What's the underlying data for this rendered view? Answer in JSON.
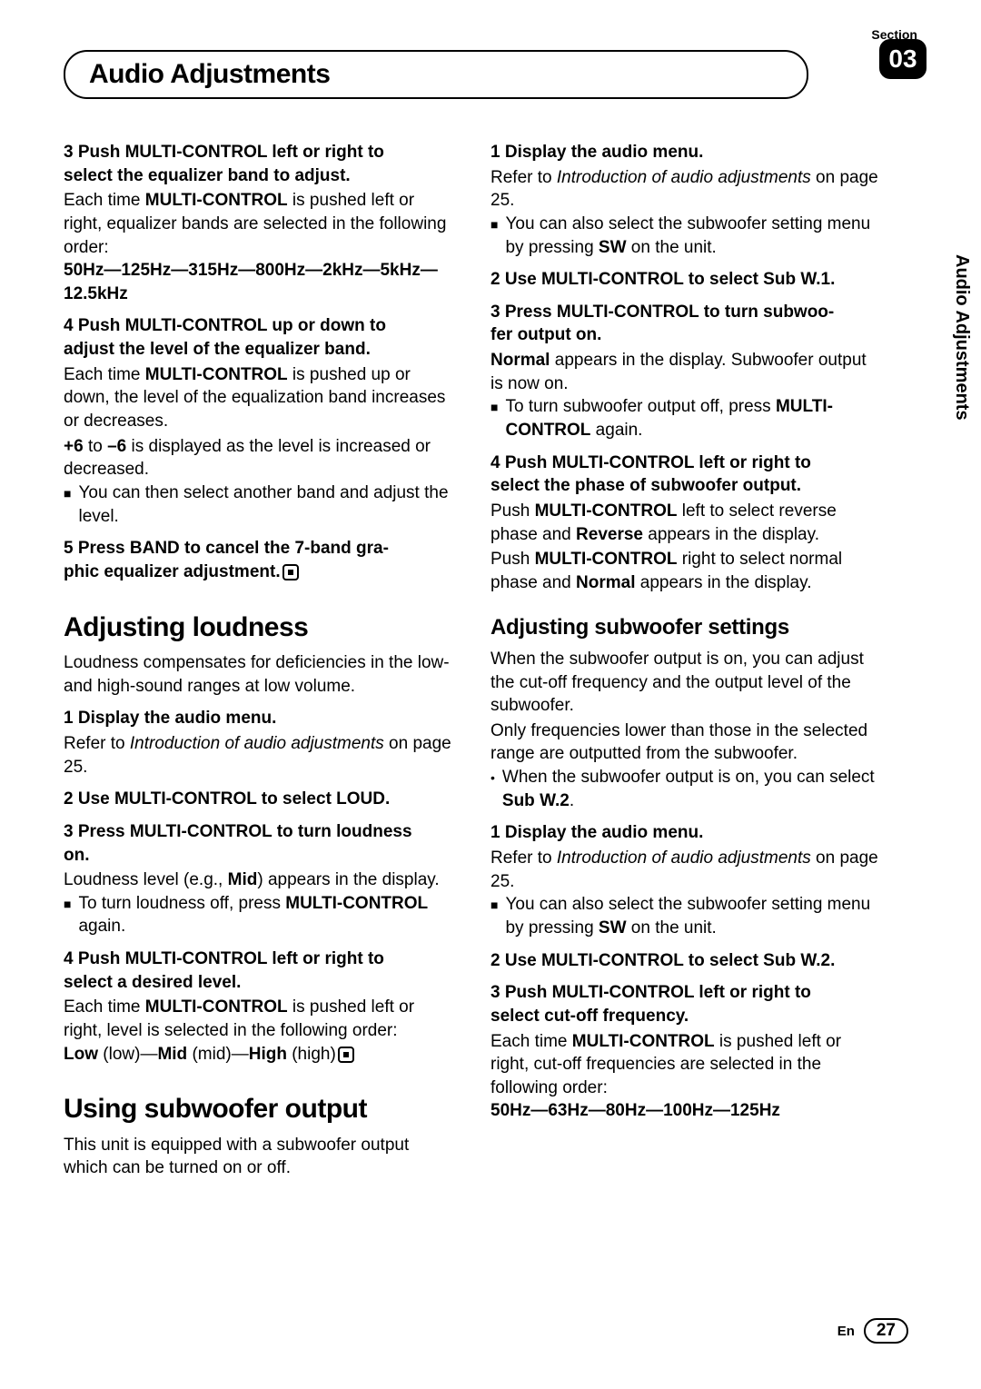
{
  "header": {
    "section_label": "Section",
    "title": "Audio Adjustments",
    "section_number": "03"
  },
  "side_tab": "Audio Adjustments",
  "left_col": {
    "step3_title_a": "3    Push MULTI-CONTROL left or right to",
    "step3_title_b": "select the equalizer band to adjust.",
    "step3_p1_a": "Each time ",
    "step3_p1_b": "MULTI-CONTROL",
    "step3_p1_c": " is pushed left or right, equalizer bands are selected in the following order:",
    "step3_seq": "50Hz—125Hz—315Hz—800Hz—2kHz—5kHz—12.5kHz",
    "step4_title_a": "4    Push MULTI-CONTROL up or down to",
    "step4_title_b": "adjust the level of the equalizer band.",
    "step4_p1_a": "Each time ",
    "step4_p1_b": "MULTI-CONTROL",
    "step4_p1_c": " is pushed up or down, the level of the equalization band increases or decreases.",
    "step4_p2_a": "+6",
    "step4_p2_b": " to ",
    "step4_p2_c": "–6",
    "step4_p2_d": " is displayed as the level is increased or decreased.",
    "step4_bullet": "You can then select another band and adjust the level.",
    "step5_title_a": "5    Press BAND to cancel the 7-band gra-",
    "step5_title_b": "phic equalizer adjustment.",
    "h2_loudness": "Adjusting loudness",
    "loud_intro": "Loudness compensates for deficiencies in the low- and high-sound ranges at low volume.",
    "loud_s1": "1    Display the audio menu.",
    "loud_s1_p_a": "Refer to ",
    "loud_s1_p_b": "Introduction of audio adjustments",
    "loud_s1_p_c": " on page 25.",
    "loud_s2": "2    Use MULTI-CONTROL to select LOUD.",
    "loud_s3_a": "3    Press MULTI-CONTROL to turn loudness",
    "loud_s3_b": "on.",
    "loud_s3_p_a": "Loudness level (e.g., ",
    "loud_s3_p_b": "Mid",
    "loud_s3_p_c": ") appears in the display.",
    "loud_s3_bullet_a": "To turn loudness off, press ",
    "loud_s3_bullet_b": "MULTI-CONTROL",
    "loud_s3_bullet_c": " again.",
    "loud_s4_a": "4    Push MULTI-CONTROL left or right to",
    "loud_s4_b": "select a desired level.",
    "loud_s4_p_a": "Each time ",
    "loud_s4_p_b": "MULTI-CONTROL",
    "loud_s4_p_c": " is pushed left or right, level is selected in the following order:",
    "loud_s4_seq_a": "Low",
    "loud_s4_seq_b": " (low)—",
    "loud_s4_seq_c": "Mid",
    "loud_s4_seq_d": " (mid)—",
    "loud_s4_seq_e": "High",
    "loud_s4_seq_f": " (high)",
    "h2_sub": "Using subwoofer output",
    "sub_intro": "This unit is equipped with a subwoofer output which can be turned on or off."
  },
  "right_col": {
    "s1": "1    Display the audio menu.",
    "s1_p_a": "Refer to ",
    "s1_p_b": "Introduction of audio adjustments",
    "s1_p_c": " on page 25.",
    "s1_bullet_a": "You can also select the subwoofer setting menu by pressing ",
    "s1_bullet_b": "SW",
    "s1_bullet_c": " on the unit.",
    "s2": "2    Use MULTI-CONTROL to select Sub W.1.",
    "s3_a": "3    Press MULTI-CONTROL to turn subwoo-",
    "s3_b": "fer output on.",
    "s3_p_a": "Normal",
    "s3_p_b": " appears in the display. Subwoofer output is now on.",
    "s3_bullet_a": "To turn subwoofer output off, press ",
    "s3_bullet_b": "MULTI-CONTROL",
    "s3_bullet_c": " again.",
    "s4_a": "4    Push MULTI-CONTROL left or right to",
    "s4_b": "select the phase of subwoofer output.",
    "s4_p1_a": "Push ",
    "s4_p1_b": "MULTI-CONTROL",
    "s4_p1_c": " left to select reverse phase and ",
    "s4_p1_d": "Reverse",
    "s4_p1_e": " appears in the display.",
    "s4_p2_a": "Push ",
    "s4_p2_b": "MULTI-CONTROL",
    "s4_p2_c": " right to select normal phase and ",
    "s4_p2_d": "Normal",
    "s4_p2_e": " appears in the display.",
    "h3_subset": "Adjusting subwoofer settings",
    "subset_p1": "When the subwoofer output is on, you can adjust the cut-off frequency and the output level of the subwoofer.",
    "subset_p2": "Only frequencies lower than those in the selected range are outputted from the subwoofer.",
    "subset_bullet_a": "When the subwoofer output is on, you can select ",
    "subset_bullet_b": "Sub W.2",
    "subset_bullet_c": ".",
    "ss1": "1    Display the audio menu.",
    "ss1_p_a": "Refer to ",
    "ss1_p_b": "Introduction of audio adjustments",
    "ss1_p_c": " on page 25.",
    "ss1_bullet_a": "You can also select the subwoofer setting menu by pressing ",
    "ss1_bullet_b": "SW",
    "ss1_bullet_c": " on the unit.",
    "ss2": "2    Use MULTI-CONTROL to select Sub W.2.",
    "ss3_a": "3    Push MULTI-CONTROL left or right to",
    "ss3_b": "select cut-off frequency.",
    "ss3_p_a": "Each time ",
    "ss3_p_b": "MULTI-CONTROL",
    "ss3_p_c": " is pushed left or right, cut-off frequencies are selected in the following order:",
    "ss3_seq": "50Hz—63Hz—80Hz—100Hz—125Hz"
  },
  "footer": {
    "lang": "En",
    "page": "27"
  }
}
